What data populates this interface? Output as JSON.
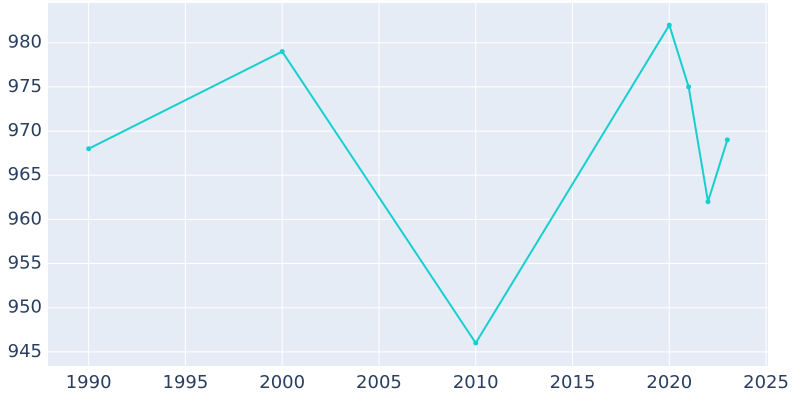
{
  "chart_data": {
    "type": "line",
    "x": [
      1990,
      2000,
      2010,
      2020,
      2021,
      2022,
      2023
    ],
    "series": [
      {
        "color": "#17cfcf",
        "values": [
          968,
          979,
          946,
          982,
          975,
          962,
          969
        ]
      }
    ],
    "xlim": [
      1987.9,
      2025.1
    ],
    "xticks": [
      1990,
      1995,
      2000,
      2005,
      2010,
      2015,
      2020,
      2025
    ],
    "ylim": [
      943.4,
      984.5
    ],
    "yticks": [
      945,
      950,
      955,
      960,
      965,
      970,
      975,
      980
    ],
    "grid": true
  }
}
